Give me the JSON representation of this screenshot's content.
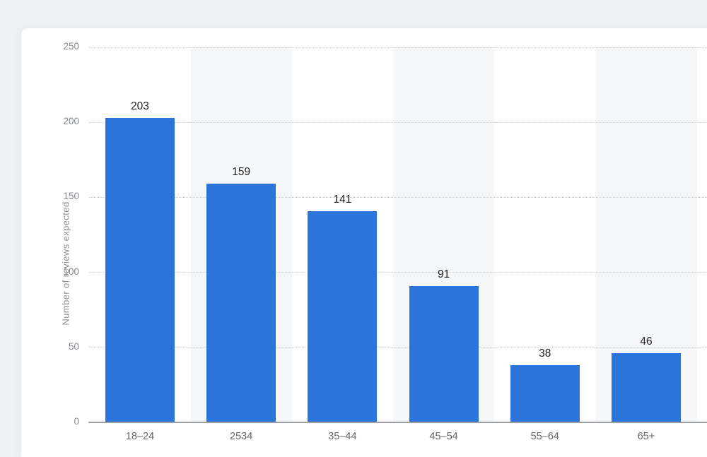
{
  "chart_data": {
    "type": "bar",
    "title": "",
    "xlabel": "",
    "ylabel": "Number of reviews expected",
    "categories": [
      "18–24",
      "2534",
      "35–44",
      "45–54",
      "55–64",
      "65+"
    ],
    "values": [
      203,
      159,
      141,
      91,
      38,
      46
    ],
    "value_labels": [
      "203",
      "159",
      "141",
      "91",
      "38",
      "46"
    ],
    "ylim": [
      0,
      250
    ],
    "yticks": [
      0,
      50,
      100,
      150,
      200,
      250
    ],
    "grid": "horizontal-dotted",
    "legend": "none",
    "striped_column_background": true
  },
  "colors": {
    "page_background": "#eff1f3",
    "card_background": "#ffffff",
    "bar": "#2a74da",
    "column_band": "#f6f7f9",
    "gridline": "#c9cdd2",
    "axis_line": "#9b9fa3",
    "value_label_text": "#212121",
    "y_tick_text": "#85898d",
    "x_tick_text": "#65686b",
    "y_axis_title_text": "#8a8e92"
  }
}
